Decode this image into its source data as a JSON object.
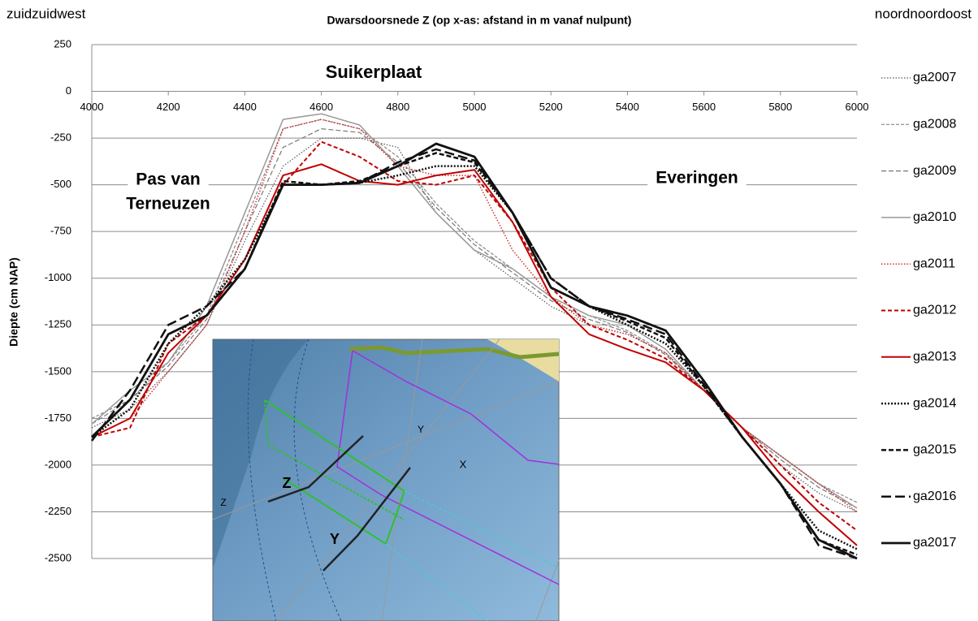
{
  "chart_data": {
    "type": "line",
    "title": "Dwarsdoorsnede Z (op x-as: afstand in m vanaf nulpunt)",
    "left_label": "zuidzuidwest",
    "right_label": "noordnoordoost",
    "y_label": "Diepte (cm NAP)",
    "annotations": [
      "Suikerplaat",
      "Pas van",
      "Terneuzen",
      "Everingen"
    ],
    "inset_labels": [
      "Z",
      "Y",
      "Z",
      "Y",
      "X"
    ],
    "x": [
      4000,
      4100,
      4200,
      4300,
      4400,
      4500,
      4600,
      4700,
      4800,
      4900,
      5000,
      5100,
      5200,
      5300,
      5400,
      5500,
      5600,
      5700,
      5800,
      5900,
      6000
    ],
    "xlim": [
      4000,
      6000
    ],
    "xticks": [
      4000,
      4200,
      4400,
      4600,
      4800,
      5000,
      5200,
      5400,
      5600,
      5800,
      6000
    ],
    "ylim": [
      -2500,
      250
    ],
    "yticks": [
      250,
      0,
      -250,
      -500,
      -750,
      -1000,
      -1250,
      -1500,
      -1750,
      -2000,
      -2250,
      -2500
    ],
    "grid": true,
    "legend": "right",
    "series": [
      {
        "name": "ga2007",
        "color": "#555555",
        "dash": "1.5,2",
        "width": 1.2,
        "values": [
          -1800,
          -1700,
          -1500,
          -1250,
          -800,
          -400,
          -250,
          -250,
          -300,
          -650,
          -850,
          -1000,
          -1150,
          -1250,
          -1300,
          -1400,
          -1600,
          -1800,
          -2000,
          -2150,
          -2250
        ]
      },
      {
        "name": "ga2008",
        "color": "#888888",
        "dash": "4,2",
        "width": 1.2,
        "values": [
          -1750,
          -1650,
          -1450,
          -1200,
          -700,
          -200,
          -150,
          -200,
          -350,
          -600,
          -800,
          -950,
          -1100,
          -1200,
          -1280,
          -1400,
          -1600,
          -1800,
          -1950,
          -2100,
          -2200
        ]
      },
      {
        "name": "ga2009",
        "color": "#777777",
        "dash": "6,3",
        "width": 1.2,
        "values": [
          -1780,
          -1650,
          -1470,
          -1220,
          -750,
          -300,
          -200,
          -220,
          -380,
          -620,
          -820,
          -970,
          -1120,
          -1220,
          -1290,
          -1410,
          -1600,
          -1800,
          -1970,
          -2120,
          -2230
        ]
      },
      {
        "name": "ga2010",
        "color": "#999999",
        "dash": "",
        "width": 1.5,
        "values": [
          -1780,
          -1600,
          -1450,
          -1150,
          -650,
          -150,
          -120,
          -180,
          -400,
          -650,
          -850,
          -950,
          -1100,
          -1200,
          -1250,
          -1380,
          -1600,
          -1800,
          -1950,
          -2100,
          -2230
        ]
      },
      {
        "name": "ga2011",
        "color": "#d03030",
        "dash": "1.5,2",
        "width": 1.5,
        "values": [
          -1850,
          -1750,
          -1500,
          -1250,
          -750,
          -200,
          -150,
          -200,
          -400,
          -450,
          -450,
          -850,
          -1100,
          -1250,
          -1300,
          -1400,
          -1600,
          -1800,
          -1950,
          -2100,
          -2250
        ]
      },
      {
        "name": "ga2012",
        "color": "#c00000",
        "dash": "5,3",
        "width": 2,
        "values": [
          -1850,
          -1800,
          -1350,
          -1200,
          -950,
          -500,
          -270,
          -350,
          -480,
          -500,
          -450,
          -700,
          -1050,
          -1250,
          -1330,
          -1430,
          -1600,
          -1800,
          -2000,
          -2200,
          -2350
        ]
      },
      {
        "name": "ga2013",
        "color": "#c00000",
        "dash": "",
        "width": 2,
        "values": [
          -1850,
          -1750,
          -1400,
          -1200,
          -900,
          -450,
          -390,
          -480,
          -500,
          -450,
          -420,
          -700,
          -1100,
          -1300,
          -1380,
          -1450,
          -1600,
          -1800,
          -2050,
          -2250,
          -2430
        ]
      },
      {
        "name": "ga2014",
        "color": "#111111",
        "dash": "2,2",
        "width": 2.5,
        "values": [
          -1850,
          -1700,
          -1350,
          -1150,
          -900,
          -500,
          -500,
          -490,
          -450,
          -400,
          -400,
          -650,
          -1000,
          -1150,
          -1250,
          -1350,
          -1580,
          -1850,
          -2100,
          -2350,
          -2450
        ]
      },
      {
        "name": "ga2015",
        "color": "#111111",
        "dash": "6,3",
        "width": 2.5,
        "values": [
          -1850,
          -1650,
          -1300,
          -1200,
          -950,
          -480,
          -500,
          -480,
          -400,
          -330,
          -380,
          -650,
          -1000,
          -1150,
          -1230,
          -1320,
          -1580,
          -1850,
          -2100,
          -2400,
          -2480
        ]
      },
      {
        "name": "ga2016",
        "color": "#111111",
        "dash": "12,5",
        "width": 2.5,
        "values": [
          -1870,
          -1600,
          -1250,
          -1150,
          -950,
          -500,
          -500,
          -490,
          -380,
          -310,
          -370,
          -650,
          -1000,
          -1150,
          -1220,
          -1300,
          -1570,
          -1850,
          -2100,
          -2430,
          -2500
        ]
      },
      {
        "name": "ga2017",
        "color": "#111111",
        "dash": "",
        "width": 2.8,
        "values": [
          -1850,
          -1650,
          -1300,
          -1200,
          -950,
          -500,
          -500,
          -490,
          -400,
          -280,
          -350,
          -650,
          -1050,
          -1150,
          -1200,
          -1280,
          -1550,
          -1850,
          -2100,
          -2400,
          -2500
        ]
      }
    ]
  }
}
